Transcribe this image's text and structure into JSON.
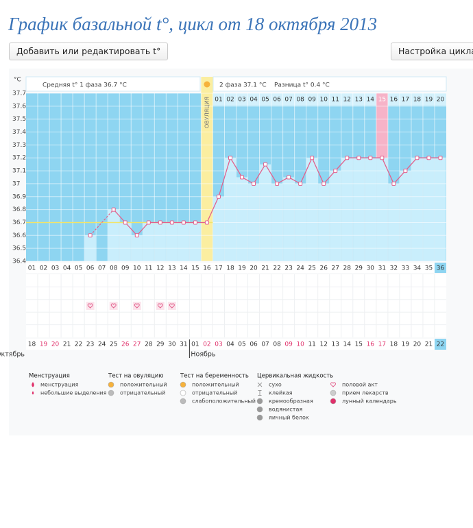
{
  "chart_data": {
    "type": "line",
    "title": "График базальной t°, цикл от 18 октября 2013",
    "y_unit": "°C",
    "phase1_label": "Средняя t° 1 фаза 36.7 °C",
    "phase2_label": "2 фаза 37.1 °C",
    "difference_label": "Разница t° 0.4 °C",
    "ovulation_label": "ОВУЛЯЦИЯ",
    "ovulation_day": "16",
    "highlight_day": "31",
    "current_day": "36",
    "cover_line": 36.7,
    "categories": [
      "01",
      "02",
      "03",
      "04",
      "05",
      "06",
      "07",
      "08",
      "09",
      "10",
      "11",
      "12",
      "13",
      "14",
      "15",
      "16",
      "17",
      "18",
      "19",
      "20",
      "21",
      "22",
      "23",
      "24",
      "25",
      "26",
      "27",
      "28",
      "29",
      "30",
      "31",
      "32",
      "33",
      "34",
      "35",
      "36"
    ],
    "phase2_days": [
      "01",
      "02",
      "03",
      "04",
      "05",
      "06",
      "07",
      "08",
      "09",
      "10",
      "11",
      "12",
      "13",
      "14",
      "15",
      "16",
      "17",
      "18",
      "19",
      "20"
    ],
    "values": [
      null,
      null,
      null,
      null,
      null,
      36.6,
      null,
      36.8,
      36.7,
      36.6,
      36.7,
      36.7,
      36.7,
      36.7,
      36.7,
      36.7,
      36.9,
      37.2,
      37.05,
      37.0,
      37.15,
      37.0,
      37.05,
      37.0,
      37.2,
      37.0,
      37.1,
      37.2,
      37.2,
      37.2,
      37.2,
      37.0,
      37.1,
      37.2,
      37.2,
      37.2
    ],
    "color": "#e2608c",
    "ylim": [
      36.4,
      37.7
    ],
    "yticks": [
      36.4,
      36.5,
      36.6,
      36.7,
      36.8,
      36.9,
      37,
      37.1,
      37.2,
      37.3,
      37.4,
      37.5,
      37.6,
      37.7
    ],
    "grid": true,
    "intercourse_days": [
      "06",
      "08",
      "10",
      "12",
      "13"
    ],
    "dates": [
      "18",
      "19",
      "20",
      "21",
      "22",
      "23",
      "24",
      "25",
      "26",
      "27",
      "28",
      "29",
      "30",
      "31",
      "01",
      "02",
      "03",
      "04",
      "05",
      "06",
      "07",
      "08",
      "09",
      "10",
      "11",
      "12",
      "13",
      "14",
      "15",
      "16",
      "17",
      "18",
      "19",
      "20",
      "21",
      "22"
    ],
    "weekend": [
      false,
      true,
      true,
      false,
      false,
      false,
      false,
      false,
      true,
      true,
      false,
      false,
      false,
      false,
      false,
      true,
      true,
      false,
      false,
      false,
      false,
      false,
      true,
      true,
      false,
      false,
      false,
      false,
      false,
      true,
      true,
      false,
      false,
      false,
      false,
      false
    ],
    "months": [
      {
        "label": "Октябрь",
        "first_date": "18"
      },
      {
        "label": "Ноябрь",
        "first_date": "01"
      }
    ]
  },
  "buttons": [
    "Добавить или редактировать t°",
    "Настройка цикла"
  ],
  "legend": [
    {
      "title": "Менструация",
      "items": [
        "менструация",
        "небольшие выделения"
      ]
    },
    {
      "title": "Тест на овуляцию",
      "items": [
        "положительный",
        "отрицательный"
      ]
    },
    {
      "title": "Тест на беременность",
      "items": [
        "положительный",
        "отрицательный",
        "слабоположительный"
      ]
    },
    {
      "title": "Цервикальная жидкость",
      "items": [
        "сухо",
        "клейкая",
        "кремообразная",
        "водянистая",
        "яичный белок"
      ]
    },
    {
      "items": [
        "половой акт",
        "прием лекарств",
        "лунный календарь"
      ]
    }
  ]
}
